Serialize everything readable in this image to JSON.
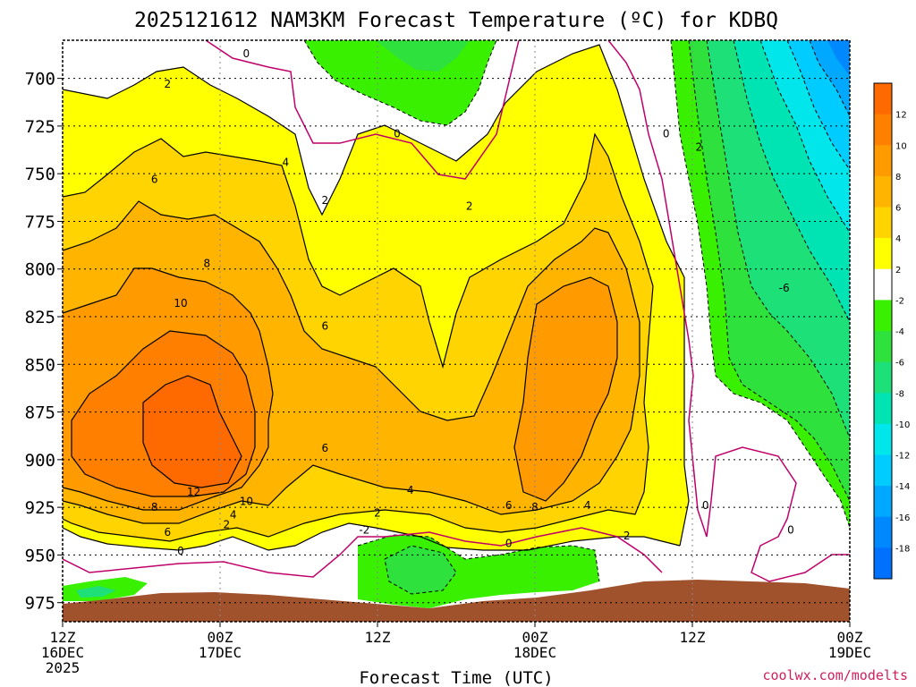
{
  "chart_data": {
    "type": "heatmap",
    "title": "2025121612 NAM3KM Forecast Temperature (ºC) for KDBQ",
    "xlabel": "Forecast Time (UTC)",
    "ylabel": "",
    "credit": "coolwx.com/modelts",
    "y_ticks": [
      "700",
      "725",
      "750",
      "775",
      "800",
      "825",
      "850",
      "875",
      "900",
      "925",
      "950",
      "975"
    ],
    "y_values": [
      700,
      725,
      750,
      775,
      800,
      825,
      850,
      875,
      900,
      925,
      950,
      975
    ],
    "ylim": [
      680,
      985
    ],
    "xlim_hours": [
      0,
      60
    ],
    "x_ticks": [
      {
        "hour": 0,
        "line1": "12Z",
        "line2": "16DEC",
        "line3": "2025"
      },
      {
        "hour": 12,
        "line1": "00Z",
        "line2": "17DEC",
        "line3": ""
      },
      {
        "hour": 24,
        "line1": "12Z",
        "line2": "",
        "line3": ""
      },
      {
        "hour": 36,
        "line1": "00Z",
        "line2": "18DEC",
        "line3": ""
      },
      {
        "hour": 48,
        "line1": "12Z",
        "line2": "",
        "line3": ""
      },
      {
        "hour": 60,
        "line1": "00Z",
        "line2": "19DEC",
        "line3": ""
      }
    ],
    "colorbar": {
      "labels": [
        "12",
        "10",
        "8",
        "6",
        "4",
        "2",
        "-2",
        "-4",
        "-6",
        "-8",
        "-10",
        "-12",
        "-14",
        "-16",
        "-18"
      ],
      "bins": [
        {
          "lo": 12,
          "hi": 14,
          "color": "#ff6a00"
        },
        {
          "lo": 10,
          "hi": 12,
          "color": "#ff8000"
        },
        {
          "lo": 8,
          "hi": 10,
          "color": "#ff9a00"
        },
        {
          "lo": 6,
          "hi": 8,
          "color": "#ffb400"
        },
        {
          "lo": 4,
          "hi": 6,
          "color": "#ffd400"
        },
        {
          "lo": 2,
          "hi": 4,
          "color": "#ffff00"
        },
        {
          "lo": -2,
          "hi": 2,
          "color": "#ffffff"
        },
        {
          "lo": -4,
          "hi": -2,
          "color": "#39f000"
        },
        {
          "lo": -6,
          "hi": -4,
          "color": "#2fe13c"
        },
        {
          "lo": -8,
          "hi": -6,
          "color": "#1ee078"
        },
        {
          "lo": -10,
          "hi": -8,
          "color": "#00e4b4"
        },
        {
          "lo": -12,
          "hi": -10,
          "color": "#00e6ea"
        },
        {
          "lo": -14,
          "hi": -12,
          "color": "#00ccff"
        },
        {
          "lo": -16,
          "hi": -14,
          "color": "#00a8ff"
        },
        {
          "lo": -18,
          "hi": -16,
          "color": "#0088ff"
        },
        {
          "lo": -20,
          "hi": -18,
          "color": "#0070ff"
        }
      ]
    },
    "contour_labels": [
      {
        "text": "2",
        "hour": 8.0,
        "p": 703
      },
      {
        "text": "0",
        "hour": 14.0,
        "p": 687
      },
      {
        "text": "0",
        "hour": 25.5,
        "p": 729
      },
      {
        "text": "0",
        "hour": 46.0,
        "p": 729
      },
      {
        "text": "2",
        "hour": 48.5,
        "p": 736
      },
      {
        "text": "4",
        "hour": 17.0,
        "p": 744
      },
      {
        "text": "6",
        "hour": 7.0,
        "p": 753
      },
      {
        "text": "2",
        "hour": 20.0,
        "p": 764
      },
      {
        "text": "2",
        "hour": 31.0,
        "p": 767
      },
      {
        "text": "8",
        "hour": 11.0,
        "p": 797
      },
      {
        "text": "10",
        "hour": 9.0,
        "p": 818
      },
      {
        "text": "6",
        "hour": 20.0,
        "p": 830
      },
      {
        "text": "-6",
        "hour": 55.0,
        "p": 810
      },
      {
        "text": "6",
        "hour": 20.0,
        "p": 894
      },
      {
        "text": "12",
        "hour": 10.0,
        "p": 917
      },
      {
        "text": "10",
        "hour": 14.0,
        "p": 922
      },
      {
        "text": "4",
        "hour": 26.5,
        "p": 916
      },
      {
        "text": "8",
        "hour": 7.0,
        "p": 925
      },
      {
        "text": "4",
        "hour": 13.0,
        "p": 929
      },
      {
        "text": "2",
        "hour": 12.5,
        "p": 934
      },
      {
        "text": "2",
        "hour": 24.0,
        "p": 928
      },
      {
        "text": "6",
        "hour": 34.0,
        "p": 924
      },
      {
        "text": "8",
        "hour": 36.0,
        "p": 925
      },
      {
        "text": "4",
        "hour": 40.0,
        "p": 924
      },
      {
        "text": "6",
        "hour": 8.0,
        "p": 938
      },
      {
        "text": "-2",
        "hour": 23.0,
        "p": 937
      },
      {
        "text": "0",
        "hour": 9.0,
        "p": 948
      },
      {
        "text": "0",
        "hour": 34.0,
        "p": 944
      },
      {
        "text": "2",
        "hour": 43.0,
        "p": 940
      },
      {
        "text": "0",
        "hour": 49.0,
        "p": 924
      },
      {
        "text": "0",
        "hour": 55.5,
        "p": 937
      }
    ]
  }
}
